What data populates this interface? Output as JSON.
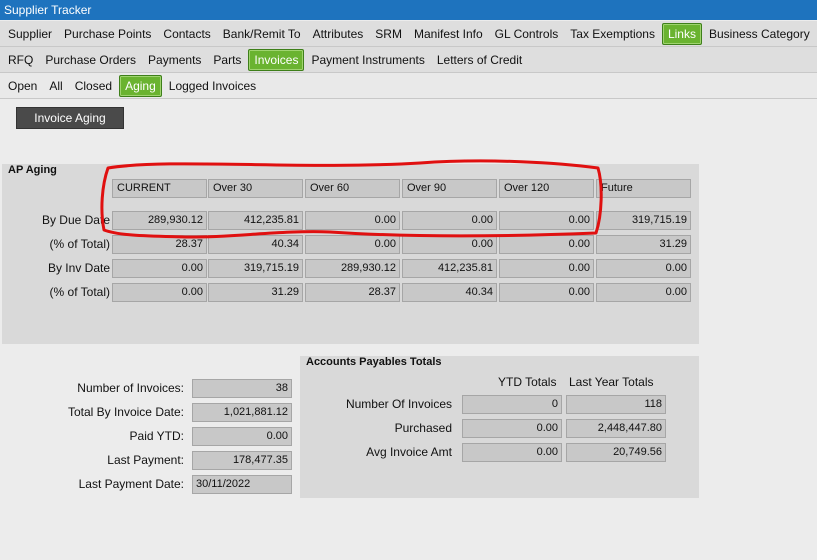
{
  "app": {
    "title": "Supplier Tracker"
  },
  "tabs_row1": [
    "Supplier",
    "Purchase Points",
    "Contacts",
    "Bank/Remit To",
    "Attributes",
    "SRM",
    "Manifest Info",
    "GL Controls",
    "Tax Exemptions",
    "Links",
    "Business Category"
  ],
  "tabs_row1_active": "Links",
  "tabs_row2": [
    "RFQ",
    "Purchase Orders",
    "Payments",
    "Parts",
    "Invoices",
    "Payment Instruments",
    "Letters of Credit"
  ],
  "tabs_row2_active": "Invoices",
  "tabs_row3": [
    "Open",
    "All",
    "Closed",
    "Aging",
    "Logged Invoices"
  ],
  "tabs_row3_active": "Aging",
  "invoice_aging_button": "Invoice Aging",
  "ap_aging": {
    "title": "AP Aging",
    "columns": [
      "CURRENT",
      "Over 30",
      "Over 60",
      "Over 90",
      "Over 120",
      "Future"
    ],
    "rows": [
      {
        "label": "By Due Date",
        "values": [
          "289,930.12",
          "412,235.81",
          "0.00",
          "0.00",
          "0.00",
          "319,715.19"
        ]
      },
      {
        "label": "(% of Total)",
        "values": [
          "28.37",
          "40.34",
          "0.00",
          "0.00",
          "0.00",
          "31.29"
        ]
      },
      {
        "label": "By Inv Date",
        "values": [
          "0.00",
          "319,715.19",
          "289,930.12",
          "412,235.81",
          "0.00",
          "0.00"
        ]
      },
      {
        "label": "(% of Total)",
        "values": [
          "0.00",
          "31.29",
          "28.37",
          "40.34",
          "0.00",
          "0.00"
        ]
      }
    ]
  },
  "summary": [
    {
      "label": "Number of Invoices:",
      "value": "38"
    },
    {
      "label": "Total By Invoice Date:",
      "value": "1,021,881.12"
    },
    {
      "label": "Paid YTD:",
      "value": "0.00"
    },
    {
      "label": "Last Payment:",
      "value": "178,477.35"
    },
    {
      "label": "Last Payment Date:",
      "value": "30/11/2022"
    }
  ],
  "ap_totals": {
    "title": "Accounts Payables Totals",
    "col_ytd": "YTD Totals",
    "col_last": "Last Year Totals",
    "rows": [
      {
        "label": "Number Of Invoices",
        "ytd": "0",
        "last": "118"
      },
      {
        "label": "Purchased",
        "ytd": "0.00",
        "last": "2,448,447.80"
      },
      {
        "label": "Avg Invoice Amt",
        "ytd": "0.00",
        "last": "20,749.56"
      }
    ]
  },
  "colors": {
    "titlebar": "#1e73be",
    "active_tab": "#6ab330",
    "annotation": "#e01010"
  }
}
